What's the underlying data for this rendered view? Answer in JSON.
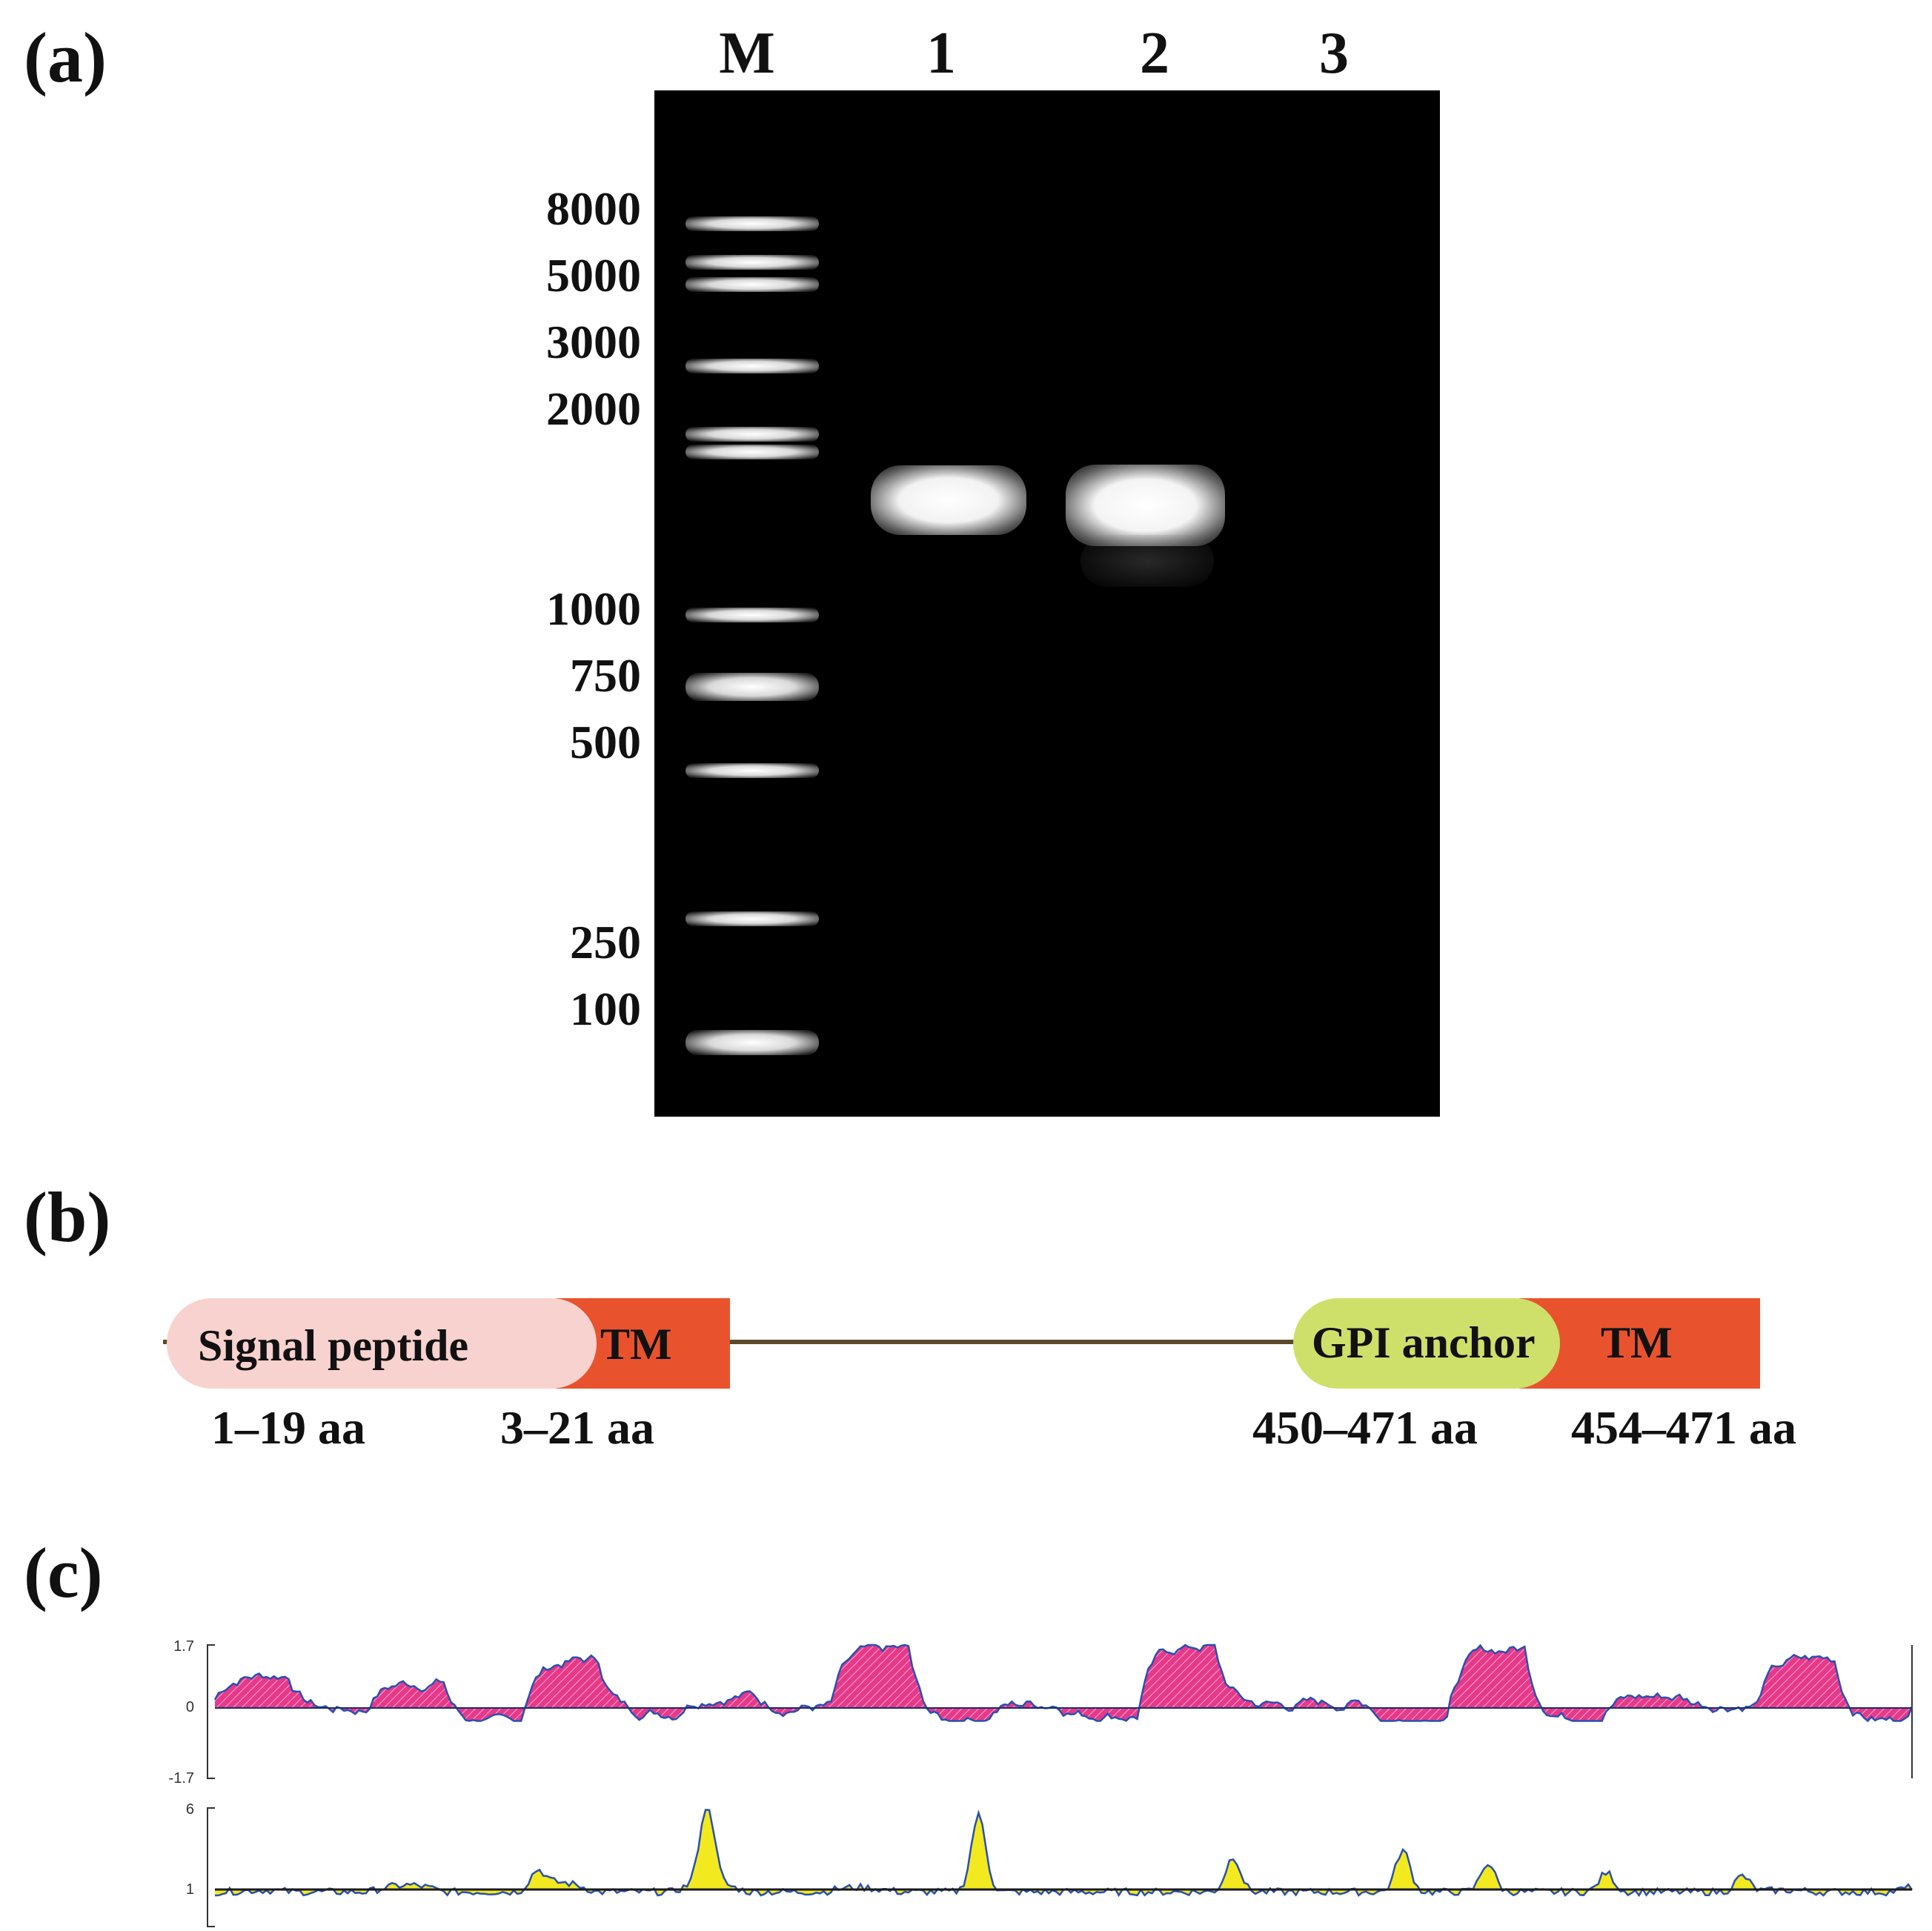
{
  "panels": {
    "a": {
      "label": "(a)"
    },
    "b": {
      "label": "(b)"
    },
    "c": {
      "label": "(c)"
    }
  },
  "gel": {
    "lanes": [
      "M",
      "1",
      "2",
      "3"
    ],
    "ladder": [
      "8000",
      "5000",
      "3000",
      "2000",
      "1000",
      "750",
      "500",
      "250",
      "100"
    ],
    "background": "#000000"
  },
  "domains": {
    "signal_peptide": {
      "label": "Signal peptide",
      "range": "1–19 aa",
      "color": "#f8d2cf"
    },
    "tm1": {
      "label": "TM",
      "range": "3–21 aa",
      "color": "#e8532e"
    },
    "gpi": {
      "label": "GPI anchor",
      "range": "450–471 aa",
      "color": "#cfe06a"
    },
    "tm2": {
      "label": "TM",
      "range": "454–471 aa",
      "color": "#e8532e"
    },
    "line_color": "#5a4a2a"
  },
  "profiles": {
    "top": {
      "ticks": [
        "1.7",
        "0",
        "-1.7"
      ],
      "fill": "#e6398a",
      "line": "#2a4fb0"
    },
    "bottom": {
      "ticks": [
        "6",
        "1"
      ],
      "fill": "#f2ea1e",
      "line": "#2a4fb0"
    }
  }
}
